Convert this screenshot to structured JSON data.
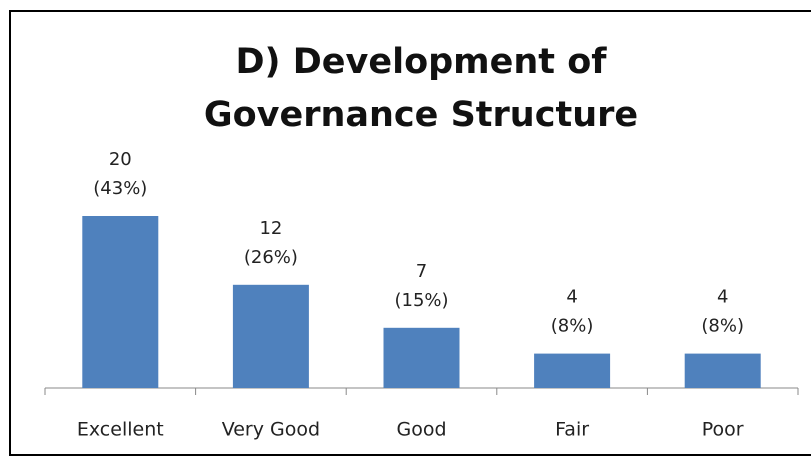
{
  "chart_data": {
    "type": "bar",
    "title": [
      "D) Development of",
      "Governance Structure"
    ],
    "categories": [
      "Excellent",
      "Very Good",
      "Good",
      "Fair",
      "Poor"
    ],
    "values": [
      20,
      12,
      7,
      4,
      4
    ],
    "value_labels": [
      [
        "20",
        "(43%)"
      ],
      [
        "12",
        "(26%)"
      ],
      [
        "7",
        "(15%)"
      ],
      [
        "4",
        "(8%)"
      ],
      [
        "4",
        "(8%)"
      ]
    ],
    "color": "#4f81bd",
    "ylim": [
      0,
      25
    ]
  }
}
